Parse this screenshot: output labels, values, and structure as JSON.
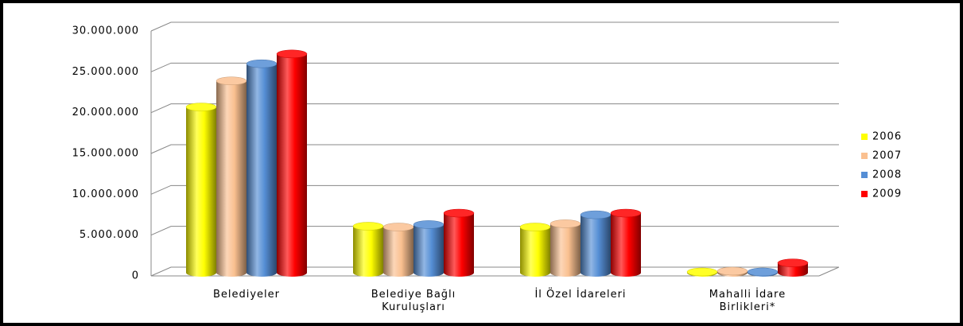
{
  "chart_data": {
    "type": "bar3d",
    "categories": [
      "Belediyeler",
      "Belediye Bağlı Kuruluşları",
      "İl Özel İdareleri",
      "Mahalli İdare Birlikleri*"
    ],
    "series": [
      {
        "name": "2006",
        "color": "#ffff00",
        "values": [
          20300000,
          5700000,
          5600000,
          100000
        ]
      },
      {
        "name": "2007",
        "color": "#fac090",
        "values": [
          23500000,
          5600000,
          6000000,
          200000
        ]
      },
      {
        "name": "2008",
        "color": "#558ed5",
        "values": [
          25600000,
          5900000,
          7100000,
          100000
        ]
      },
      {
        "name": "2009",
        "color": "#ff0000",
        "values": [
          26800000,
          7300000,
          7300000,
          1200000
        ]
      }
    ],
    "ylim": [
      0,
      30000000
    ],
    "yticks": [
      0,
      {
        "value": 5000000,
        "label": "5.000.000"
      },
      {
        "value": 10000000,
        "label": "10.000.000"
      },
      {
        "value": 15000000,
        "label": "15.000.000"
      },
      {
        "value": 20000000,
        "label": "20.000.000"
      },
      {
        "value": 25000000,
        "label": "25.000.000"
      },
      {
        "value": 30000000,
        "label": "30.000.000"
      }
    ],
    "grid": true,
    "legend": "right"
  }
}
